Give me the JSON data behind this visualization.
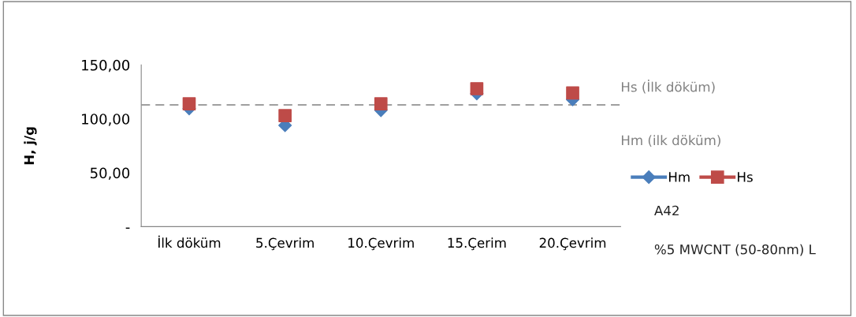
{
  "chart_data": {
    "type": "scatter",
    "ylabel": "H, j/g",
    "categories": [
      "İlk döküm",
      "5.Çevrim",
      "10.Çevrim",
      "15.Çerim",
      "20.Çevrim"
    ],
    "series": [
      {
        "name": "Hm",
        "color": "#4a7ebb",
        "marker": "diamond",
        "values": [
          109.6,
          94,
          108,
          123.5,
          118
        ]
      },
      {
        "name": "Hs",
        "color": "#be4b48",
        "marker": "square",
        "values": [
          114,
          103,
          114,
          128,
          124
        ]
      }
    ],
    "ylim": [
      0,
      150
    ],
    "yticks": [
      {
        "value": 0,
        "label": "-"
      },
      {
        "value": 50,
        "label": "50,00"
      },
      {
        "value": 100,
        "label": "100,00"
      },
      {
        "value": 150,
        "label": "150,00"
      }
    ],
    "ref_lines": [
      {
        "axis": "y",
        "value": 113,
        "label": "Hs (İlk döküm)",
        "color": "#808080",
        "line_style": "dashed"
      }
    ],
    "annotations": [
      "Hm (ilk döküm)",
      "A42",
      "%5 MWCNT (50-80nm) L"
    ],
    "legend": "right",
    "grid": false
  }
}
